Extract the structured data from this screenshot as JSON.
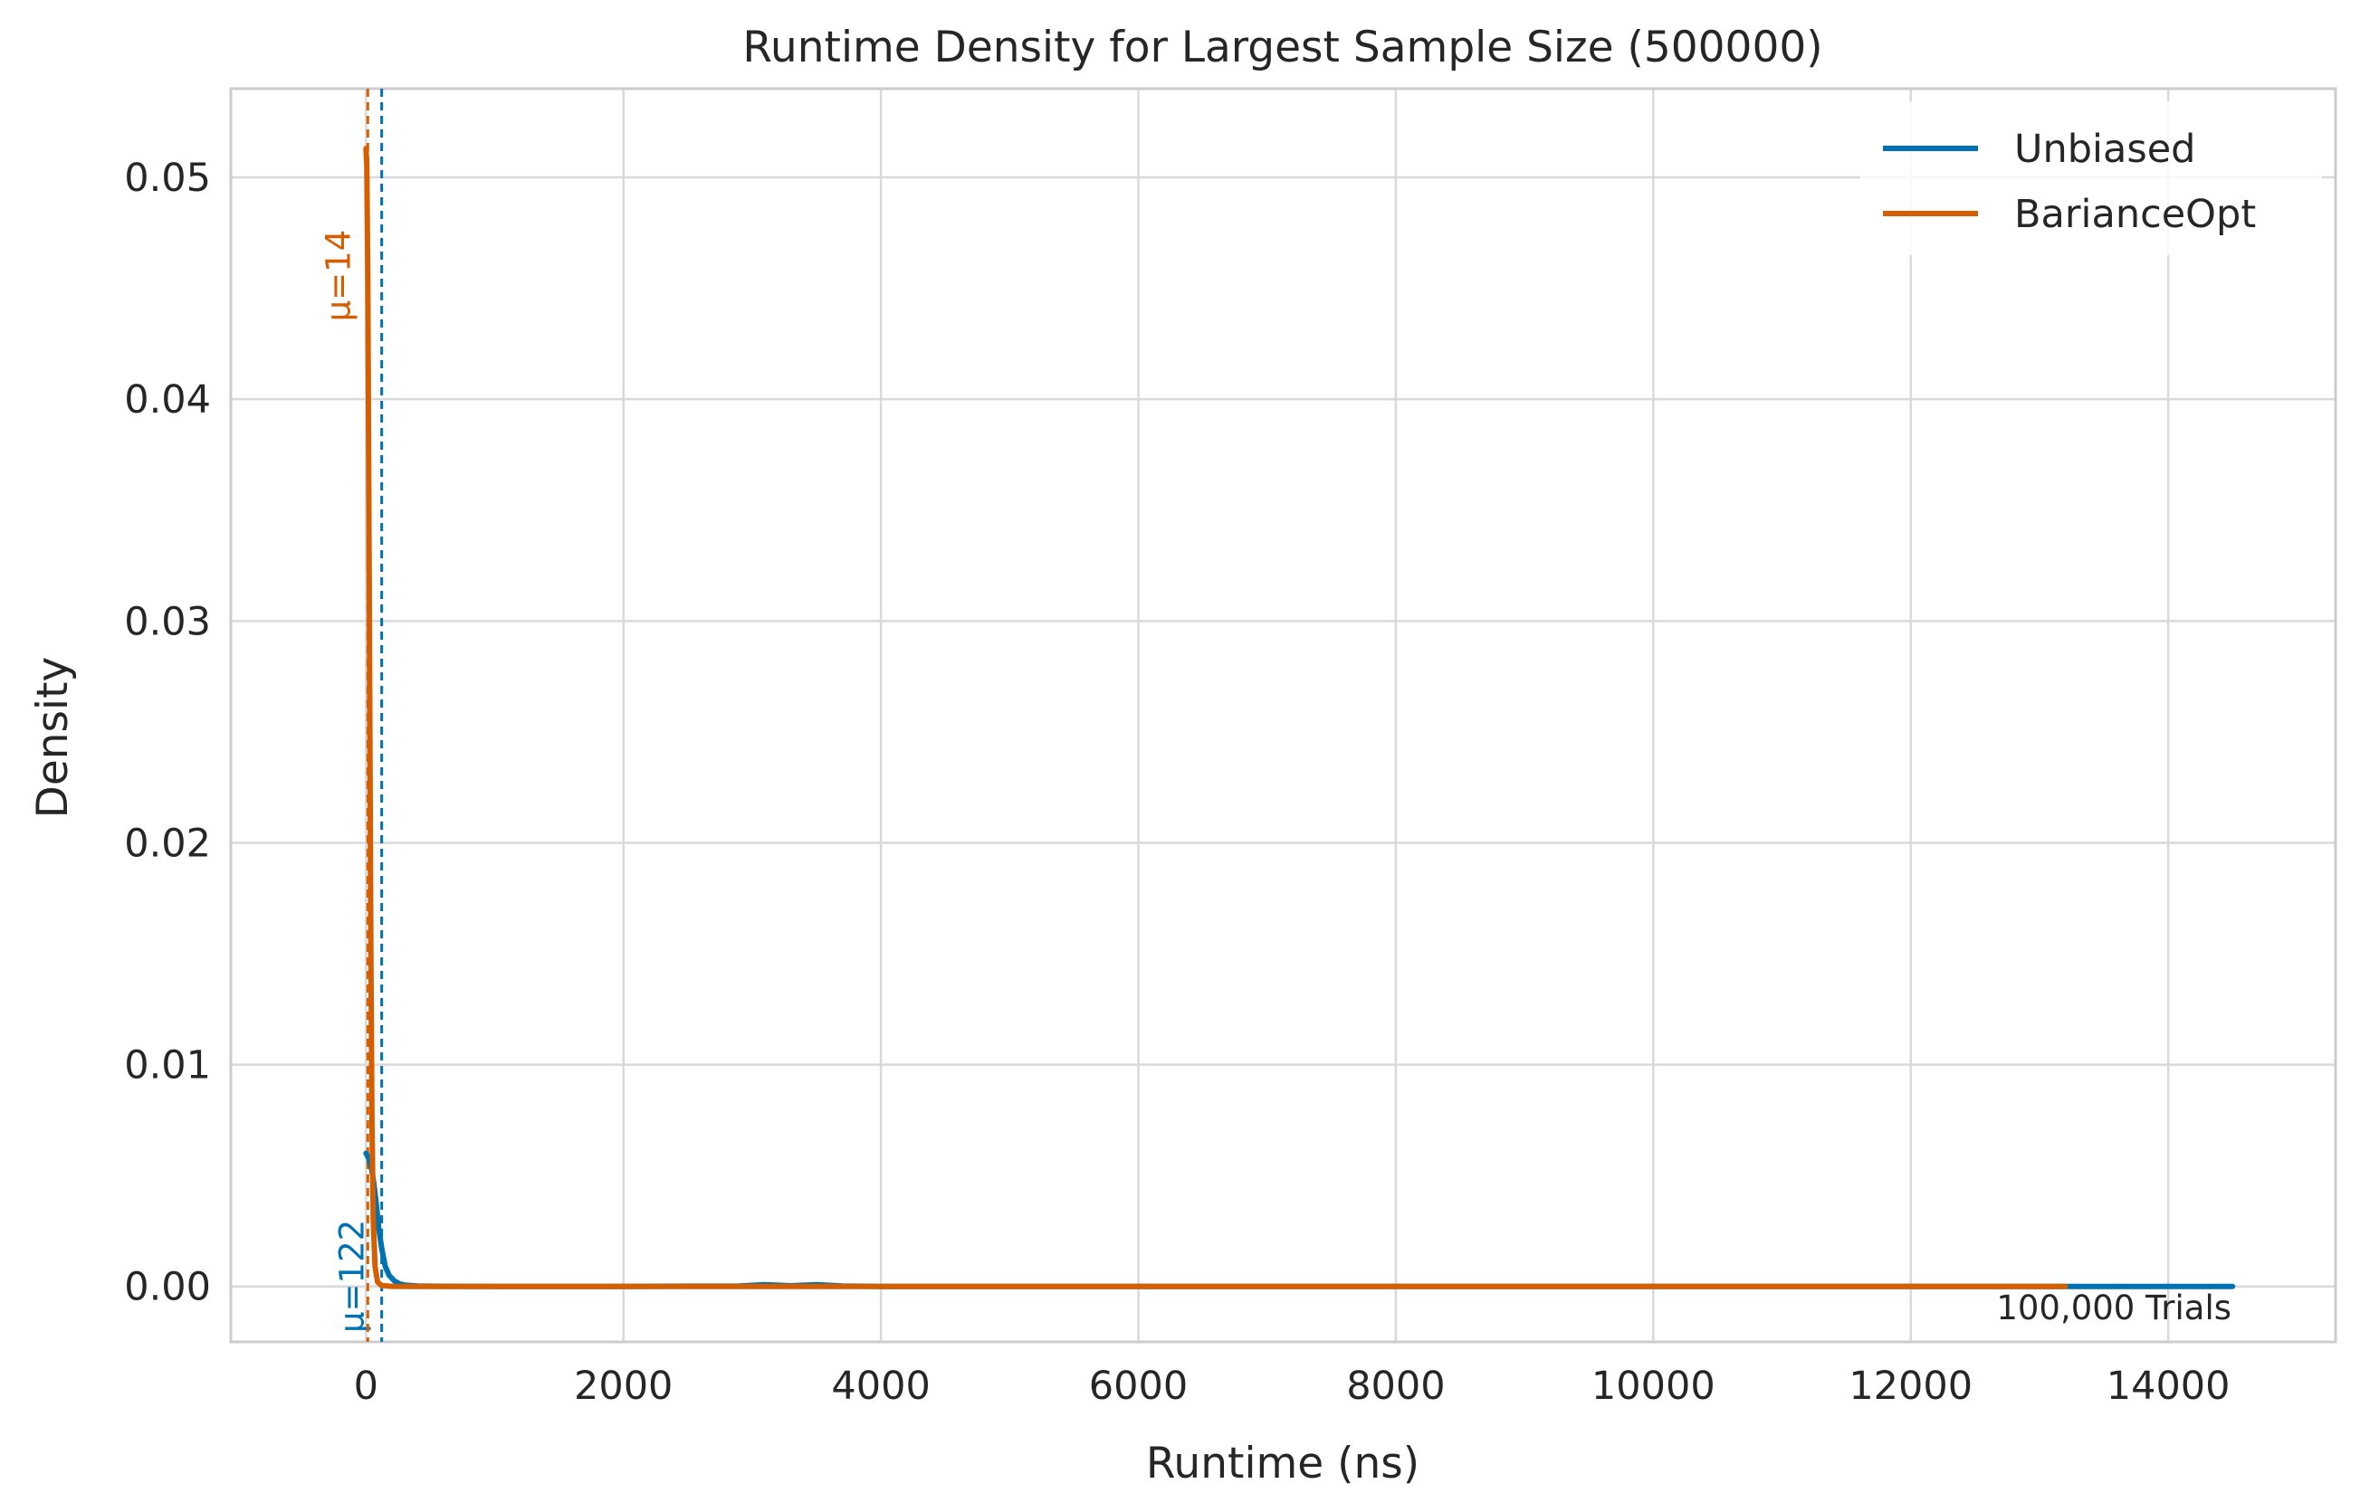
{
  "chart_data": {
    "type": "line",
    "title": "Runtime Density for Largest Sample Size (500000)",
    "xlabel": "Runtime (ns)",
    "ylabel": "Density",
    "xlim": [
      -1050,
      15300
    ],
    "ylim": [
      -0.0025,
      0.054
    ],
    "xticks": [
      0,
      2000,
      4000,
      6000,
      8000,
      10000,
      12000,
      14000
    ],
    "xtick_labels": [
      "0",
      "2000",
      "4000",
      "6000",
      "8000",
      "10000",
      "12000",
      "14000"
    ],
    "yticks": [
      0.0,
      0.01,
      0.02,
      0.03,
      0.04,
      0.05
    ],
    "ytick_labels": [
      "0.00",
      "0.01",
      "0.02",
      "0.03",
      "0.04",
      "0.05"
    ],
    "grid": true,
    "legend_position": "top-right",
    "series": [
      {
        "name": "Unbiased",
        "color": "#0072B2",
        "x": [
          0,
          20,
          40,
          60,
          80,
          100,
          122,
          150,
          180,
          220,
          260,
          300,
          400,
          600,
          1000,
          2000,
          2900,
          3100,
          3300,
          3500,
          3700,
          4000,
          6000,
          8000,
          10000,
          12000,
          13200,
          14000,
          14500
        ],
        "y": [
          0.006,
          0.0058,
          0.0054,
          0.0047,
          0.0037,
          0.0026,
          0.0017,
          0.0009,
          0.0005,
          0.00025,
          0.00012,
          6e-05,
          2e-05,
          5e-06,
          1e-06,
          0.0,
          2e-05,
          8e-05,
          3e-05,
          8e-05,
          2e-05,
          0.0,
          0.0,
          0.0,
          0.0,
          0.0,
          0.0,
          0.0,
          0.0
        ]
      },
      {
        "name": "BarianceOpt",
        "color": "#D55E00",
        "x": [
          0,
          6,
          14,
          22,
          30,
          38,
          46,
          56,
          70,
          90,
          120,
          200,
          400,
          1000,
          2000,
          4000,
          6000,
          8000,
          10000,
          12000,
          13200
        ],
        "y": [
          0.0513,
          0.0505,
          0.0455,
          0.036,
          0.025,
          0.015,
          0.0075,
          0.003,
          0.0009,
          0.0002,
          4e-05,
          5e-06,
          0.0,
          0.0,
          0.0,
          0.0,
          0.0,
          0.0,
          0.0,
          0.0,
          0.0
        ]
      }
    ],
    "mean_lines": [
      {
        "series": "Unbiased",
        "value": 122,
        "label": "μ=122",
        "color": "#0072B2"
      },
      {
        "series": "BarianceOpt",
        "value": 14,
        "label": "μ=14",
        "color": "#D55E00"
      }
    ],
    "annotation": "100,000 Trials"
  }
}
